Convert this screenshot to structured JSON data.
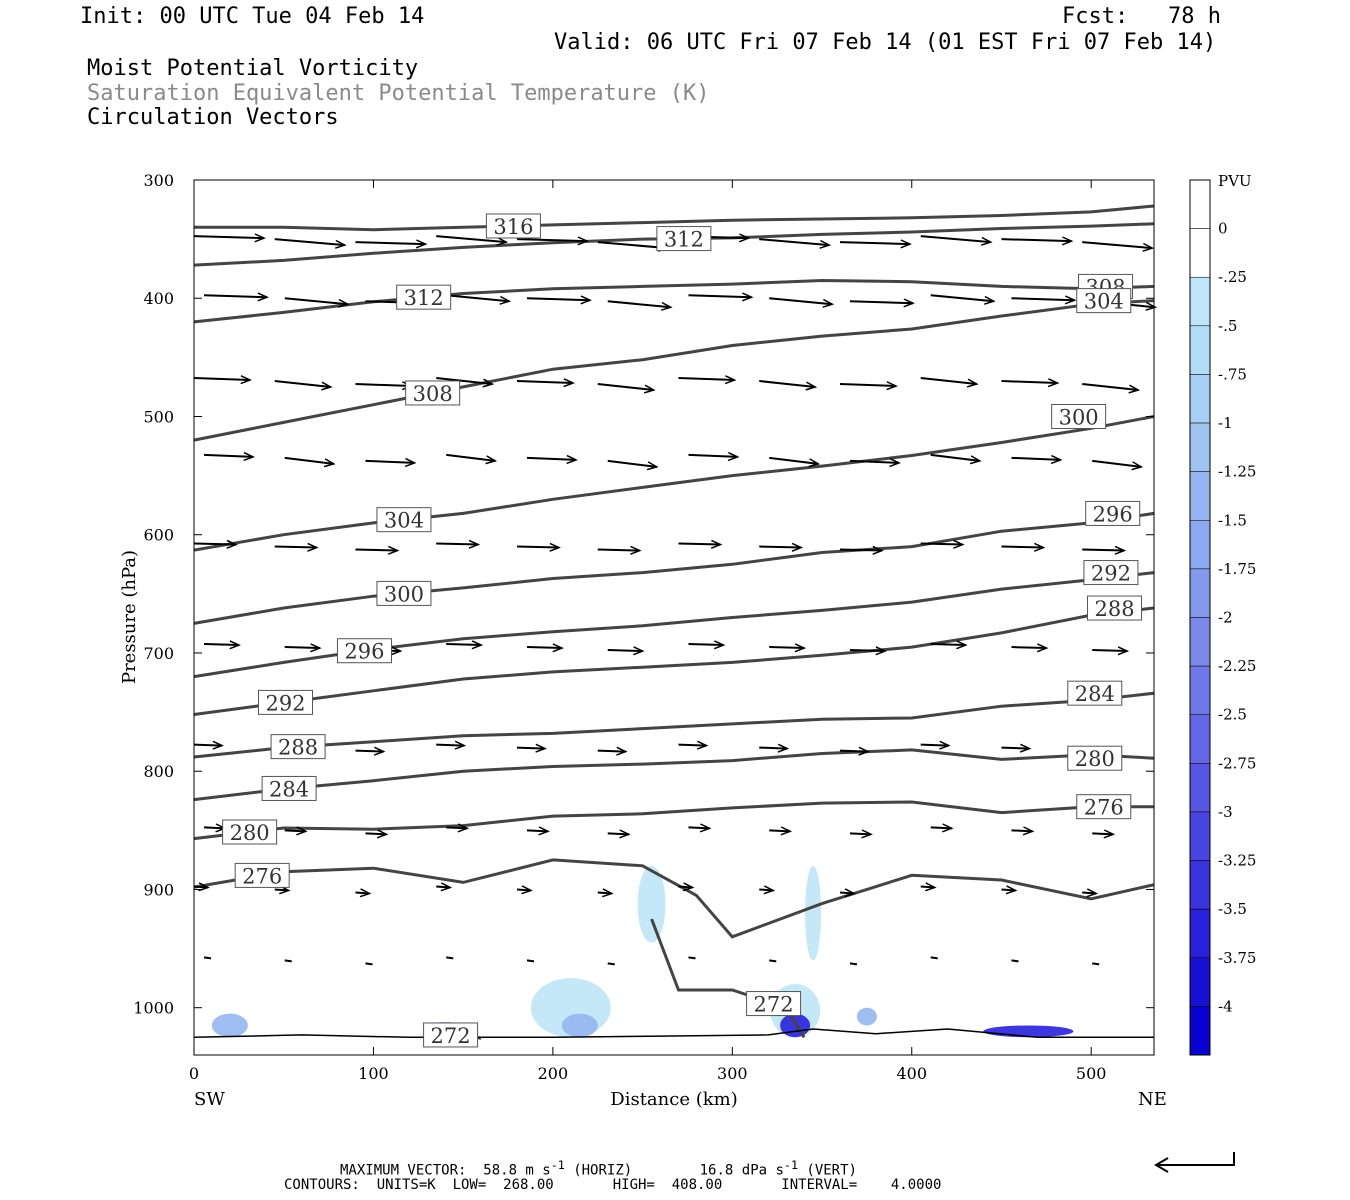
{
  "header": {
    "init": "Init: 00 UTC Tue 04 Feb 14",
    "fcst": "Fcst:   78 h",
    "valid": "Valid: 06 UTC Fri 07 Feb 14 (01 EST Fri 07 Feb 14)",
    "fields": [
      "Moist Potential Vorticity",
      "Saturation Equivalent Potential Temperature (K)",
      "Circulation Vectors"
    ]
  },
  "footer": {
    "max_vector": "MAXIMUM VECTOR:  58.8 m s",
    "max_vector_mid": " (HORIZ)        16.8 dPa s",
    "max_vector_end": " (VERT)",
    "contours": "CONTOURS:  UNITS=K  LOW=  268.00       HIGH=  408.00       INTERVAL=    4.0000"
  },
  "chart_data": {
    "type": "contour",
    "xlabel": "Distance (km)",
    "ylabel": "Pressure (hPa)",
    "xlim": [
      0,
      535
    ],
    "ylim": [
      300,
      1040
    ],
    "x_ticks": [
      0,
      100,
      200,
      300,
      400,
      500
    ],
    "y_ticks": [
      300,
      400,
      500,
      600,
      700,
      800,
      900,
      1000
    ],
    "endpoints": {
      "left": "SW",
      "right": "NE"
    },
    "colorbar": {
      "title": "PVU",
      "labels": [
        "0",
        "-.25",
        "-.5",
        "-.75",
        "-1",
        "-1.25",
        "-1.5",
        "-1.75",
        "-2",
        "-2.25",
        "-2.5",
        "-2.75",
        "-3",
        "-3.25",
        "-3.5",
        "-3.75",
        "-4"
      ],
      "colors": [
        "#ffffff",
        "#ffffff",
        "#bfe6f8",
        "#b3dcf6",
        "#a6d0f4",
        "#9ec3f2",
        "#95b6f0",
        "#8ca8ee",
        "#8399ec",
        "#7a89ea",
        "#6f78e8",
        "#6367e6",
        "#5656e3",
        "#4744e0",
        "#3833dd",
        "#2821d9",
        "#1810d5",
        "#0800d0"
      ]
    },
    "theta_es_contours": [
      {
        "value": 316,
        "label": "316",
        "label_x": 178,
        "points": [
          [
            0,
            340
          ],
          [
            50,
            340
          ],
          [
            100,
            342
          ],
          [
            150,
            340
          ],
          [
            200,
            338
          ],
          [
            250,
            336
          ],
          [
            300,
            334
          ],
          [
            350,
            333
          ],
          [
            400,
            332
          ],
          [
            450,
            330
          ],
          [
            500,
            327
          ],
          [
            535,
            322
          ]
        ]
      },
      {
        "value": 312,
        "label": "312",
        "label_x": 273,
        "points": [
          [
            0,
            372
          ],
          [
            50,
            368
          ],
          [
            100,
            362
          ],
          [
            150,
            357
          ],
          [
            200,
            353
          ],
          [
            250,
            350
          ],
          [
            300,
            349
          ],
          [
            350,
            346
          ],
          [
            400,
            344
          ],
          [
            450,
            341
          ],
          [
            500,
            339
          ],
          [
            535,
            337
          ]
        ]
      },
      {
        "value": 312,
        "label": "312",
        "label_x": 128,
        "points": [
          [
            0,
            420
          ],
          [
            50,
            412
          ],
          [
            100,
            403
          ],
          [
            150,
            396
          ],
          [
            200,
            392
          ],
          [
            250,
            390
          ],
          [
            300,
            388
          ],
          [
            350,
            385
          ],
          [
            400,
            386
          ],
          [
            450,
            390
          ],
          [
            500,
            392
          ],
          [
            535,
            390
          ]
        ]
      },
      {
        "value": 308,
        "label": "308",
        "label_x": 508,
        "points": [
          [
            0,
            420
          ]
        ]
      },
      {
        "value": 308,
        "label": "308",
        "label_x": 133,
        "points": [
          [
            0,
            520
          ],
          [
            50,
            505
          ],
          [
            100,
            490
          ],
          [
            150,
            475
          ],
          [
            200,
            460
          ],
          [
            250,
            452
          ],
          [
            300,
            440
          ],
          [
            350,
            432
          ],
          [
            400,
            426
          ],
          [
            450,
            415
          ],
          [
            500,
            405
          ],
          [
            535,
            402
          ]
        ]
      },
      {
        "value": 304,
        "label": "304",
        "label_x": 507,
        "points": [
          [
            0,
            520
          ]
        ]
      },
      {
        "value": 304,
        "label": "304",
        "label_x": 117,
        "points": [
          [
            0,
            613
          ],
          [
            50,
            600
          ],
          [
            100,
            590
          ],
          [
            150,
            582
          ],
          [
            200,
            570
          ],
          [
            250,
            560
          ],
          [
            300,
            550
          ],
          [
            350,
            542
          ],
          [
            400,
            533
          ],
          [
            450,
            522
          ],
          [
            500,
            510
          ],
          [
            535,
            500
          ]
        ]
      },
      {
        "value": 300,
        "label": "300",
        "label_x": 493,
        "points": [
          [
            0,
            613
          ]
        ]
      },
      {
        "value": 300,
        "label": "300",
        "label_x": 117,
        "points": [
          [
            0,
            675
          ],
          [
            50,
            662
          ],
          [
            100,
            652
          ],
          [
            150,
            645
          ],
          [
            200,
            637
          ],
          [
            250,
            632
          ],
          [
            300,
            625
          ],
          [
            350,
            615
          ],
          [
            400,
            610
          ],
          [
            450,
            597
          ],
          [
            500,
            590
          ],
          [
            535,
            582
          ]
        ]
      },
      {
        "value": 296,
        "label": "296",
        "label_x": 512,
        "points": [
          [
            0,
            675
          ]
        ]
      },
      {
        "value": 296,
        "label": "296",
        "label_x": 95,
        "points": [
          [
            0,
            720
          ],
          [
            50,
            708
          ],
          [
            100,
            697
          ],
          [
            150,
            688
          ],
          [
            200,
            682
          ],
          [
            250,
            677
          ],
          [
            300,
            670
          ],
          [
            350,
            664
          ],
          [
            400,
            657
          ],
          [
            450,
            646
          ],
          [
            500,
            638
          ],
          [
            535,
            632
          ]
        ]
      },
      {
        "value": 292,
        "label": "292",
        "label_x": 511,
        "points": [
          [
            0,
            720
          ]
        ]
      },
      {
        "value": 292,
        "label": "292",
        "label_x": 51,
        "points": [
          [
            0,
            752
          ],
          [
            50,
            742
          ],
          [
            100,
            732
          ],
          [
            150,
            722
          ],
          [
            200,
            716
          ],
          [
            250,
            712
          ],
          [
            300,
            708
          ],
          [
            350,
            702
          ],
          [
            400,
            695
          ],
          [
            450,
            683
          ],
          [
            500,
            668
          ],
          [
            535,
            662
          ]
        ]
      },
      {
        "value": 288,
        "label": "288",
        "label_x": 513,
        "points": [
          [
            0,
            752
          ]
        ]
      },
      {
        "value": 288,
        "label": "288",
        "label_x": 58,
        "points": [
          [
            0,
            788
          ],
          [
            50,
            780
          ],
          [
            100,
            775
          ],
          [
            150,
            770
          ],
          [
            200,
            768
          ],
          [
            250,
            764
          ],
          [
            300,
            760
          ],
          [
            350,
            756
          ],
          [
            400,
            755
          ],
          [
            450,
            745
          ],
          [
            500,
            740
          ],
          [
            535,
            734
          ]
        ]
      },
      {
        "value": 284,
        "label": "284",
        "label_x": 502,
        "points": [
          [
            0,
            788
          ]
        ]
      },
      {
        "value": 284,
        "label": "284",
        "label_x": 53,
        "points": [
          [
            0,
            824
          ],
          [
            50,
            815
          ],
          [
            100,
            808
          ],
          [
            150,
            800
          ],
          [
            200,
            796
          ],
          [
            250,
            794
          ],
          [
            300,
            791
          ],
          [
            350,
            785
          ],
          [
            400,
            782
          ],
          [
            450,
            790
          ],
          [
            500,
            786
          ],
          [
            535,
            789
          ]
        ]
      },
      {
        "value": 280,
        "label": "280",
        "label_x": 502,
        "points": [
          [
            0,
            824
          ]
        ]
      },
      {
        "value": 280,
        "label": "280",
        "label_x": 31,
        "points": [
          [
            0,
            857
          ],
          [
            50,
            848
          ],
          [
            100,
            849
          ],
          [
            150,
            846
          ],
          [
            200,
            838
          ],
          [
            250,
            836
          ],
          [
            300,
            831
          ],
          [
            350,
            827
          ],
          [
            400,
            826
          ],
          [
            450,
            835
          ],
          [
            500,
            830
          ],
          [
            535,
            830
          ]
        ]
      },
      {
        "value": 276,
        "label": "276",
        "label_x": 507,
        "points": [
          [
            0,
            857
          ]
        ]
      },
      {
        "value": 276,
        "label": "276",
        "label_x": 38,
        "points": [
          [
            0,
            898
          ],
          [
            50,
            885
          ],
          [
            100,
            882
          ],
          [
            150,
            894
          ],
          [
            200,
            875
          ],
          [
            250,
            880
          ],
          [
            280,
            905
          ],
          [
            300,
            940
          ],
          [
            350,
            912
          ],
          [
            400,
            888
          ],
          [
            450,
            892
          ],
          [
            500,
            908
          ],
          [
            535,
            896
          ]
        ]
      },
      {
        "value": 272,
        "label": "272",
        "label_x": 143,
        "points": [
          [
            130,
            1025
          ],
          [
            150,
            1022
          ],
          [
            160,
            1026
          ]
        ]
      },
      {
        "value": 272,
        "label": "272",
        "label_x": 323,
        "points": [
          [
            255,
            925
          ],
          [
            270,
            985
          ],
          [
            300,
            985
          ],
          [
            330,
            1000
          ],
          [
            340,
            1025
          ]
        ]
      }
    ],
    "surface_pressure": [
      [
        0,
        1025
      ],
      [
        60,
        1023
      ],
      [
        120,
        1025
      ],
      [
        200,
        1025
      ],
      [
        260,
        1024
      ],
      [
        320,
        1023
      ],
      [
        345,
        1018
      ],
      [
        380,
        1022
      ],
      [
        420,
        1018
      ],
      [
        470,
        1025
      ],
      [
        535,
        1025
      ]
    ],
    "mpv_region_values_pvu": [
      -0.5,
      -1,
      -2,
      -3,
      -4
    ],
    "circulation_vectors": {
      "x_positions": [
        0,
        45,
        90,
        135,
        180,
        225,
        270,
        315,
        360,
        405,
        450,
        495
      ],
      "pressure_levels": [
        350,
        400,
        470,
        535,
        610,
        695,
        780,
        850,
        900,
        960
      ],
      "shown_on_levels": [
        350,
        400,
        470,
        535,
        610,
        695,
        780,
        850,
        900,
        960
      ]
    }
  }
}
